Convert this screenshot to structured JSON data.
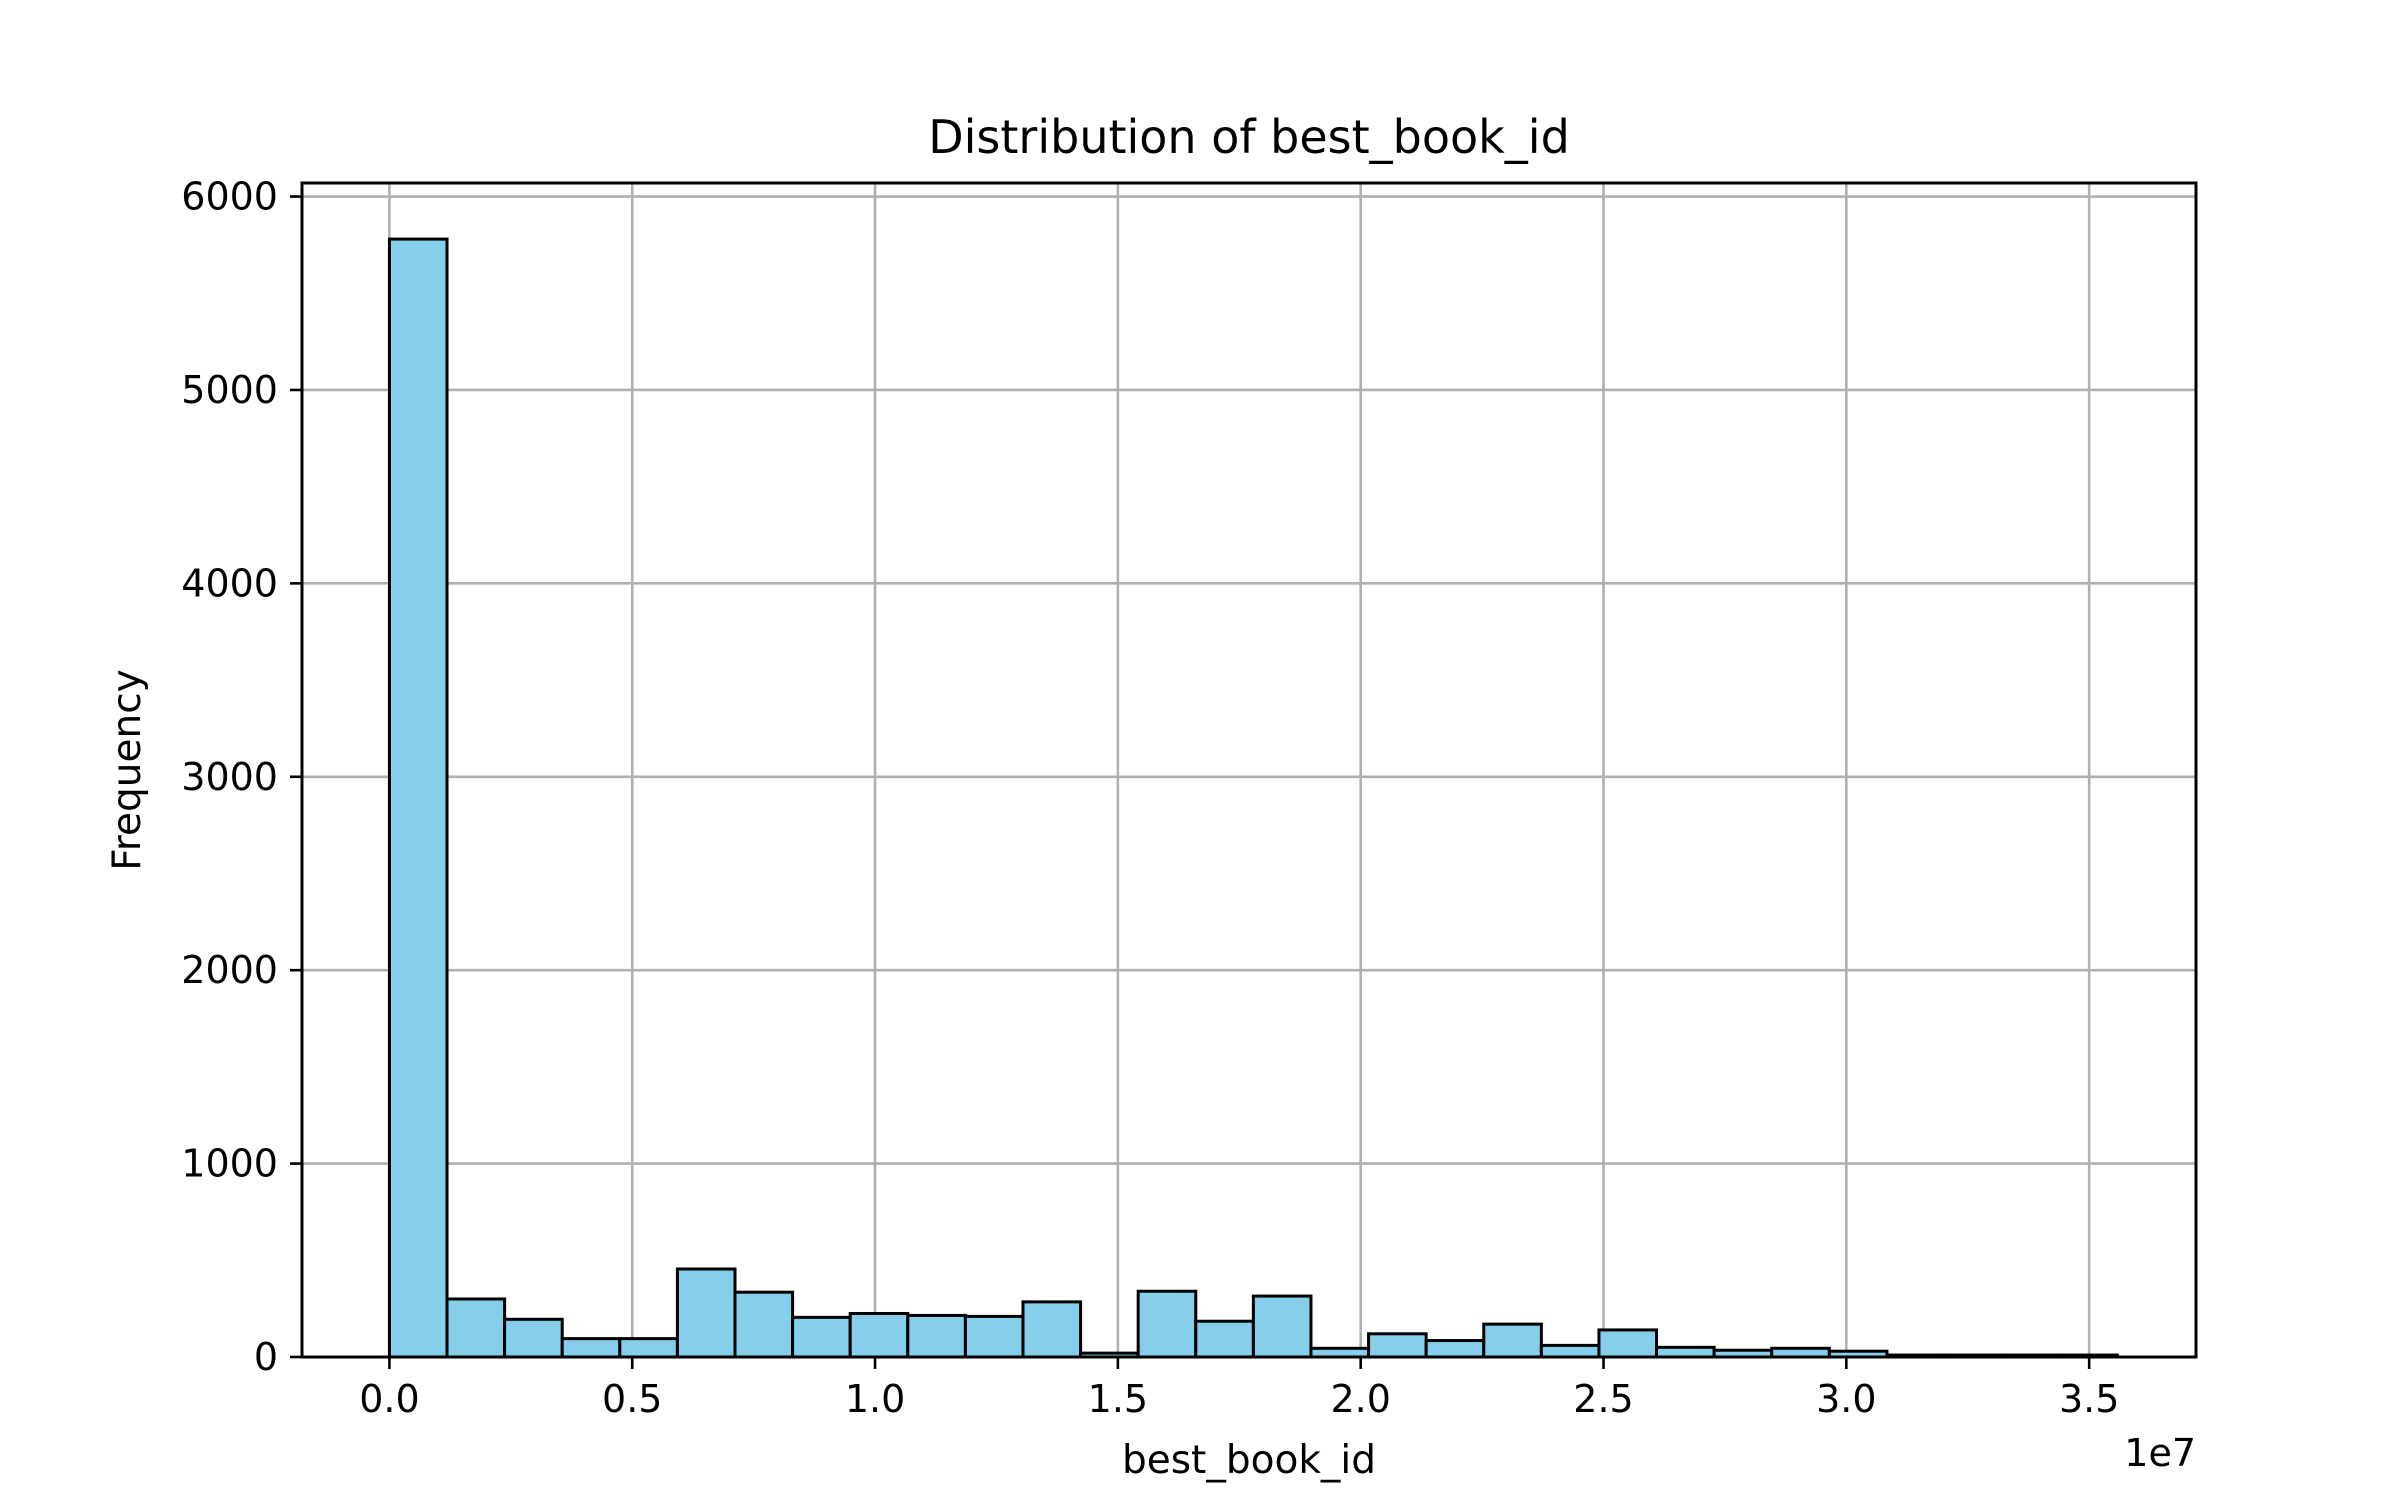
{
  "chart_data": {
    "type": "bar",
    "title": "Distribution of best_book_id",
    "xlabel": "best_book_id",
    "ylabel": "Frequency",
    "x_offset_label": "1e7",
    "xlim": [
      -0.18,
      3.72
    ],
    "ylim": [
      0,
      6070
    ],
    "x_ticks": [
      0.0,
      0.5,
      1.0,
      1.5,
      2.0,
      2.5,
      3.0,
      3.5
    ],
    "x_tick_labels": [
      "0.0",
      "0.5",
      "1.0",
      "1.5",
      "2.0",
      "2.5",
      "3.0",
      "3.5"
    ],
    "y_ticks": [
      0,
      1000,
      2000,
      3000,
      4000,
      5000,
      6000
    ],
    "y_tick_labels": [
      "0",
      "1000",
      "2000",
      "3000",
      "4000",
      "5000",
      "6000"
    ],
    "bin_start": 0.0,
    "bin_width": 0.1186,
    "values": [
      5780,
      300,
      195,
      95,
      95,
      455,
      335,
      205,
      225,
      215,
      210,
      285,
      20,
      340,
      185,
      315,
      45,
      120,
      85,
      170,
      60,
      140,
      50,
      35,
      45,
      30,
      10,
      10,
      10,
      10
    ],
    "grid": true,
    "legend": "none",
    "bar_color": "#87ceeb",
    "edge_color": "#000000"
  }
}
